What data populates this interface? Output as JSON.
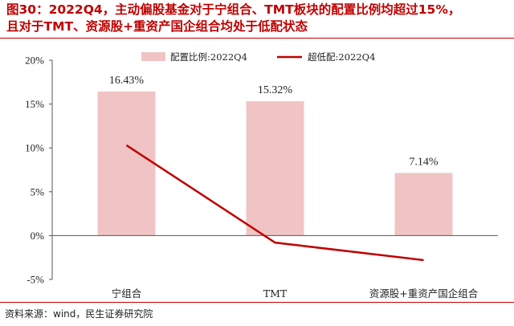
{
  "title_line1": "图30：2022Q4，主动偏股基金对于宁组合、TMT板块的配置比例均超过15%，",
  "title_line2": "且对于TMT、资源股+重资产国企组合均处于低配状态",
  "source": "资料来源：wind，民生证券研究院",
  "chart_data": {
    "type": "bar",
    "categories": [
      "宁组合",
      "TMT",
      "资源股+重资产国企组合"
    ],
    "series": [
      {
        "name": "配置比例:2022Q4",
        "type": "bar",
        "values": [
          16.43,
          15.32,
          7.14
        ],
        "labels": [
          "16.43%",
          "15.32%",
          "7.14%"
        ],
        "color": "#f0c4c4"
      },
      {
        "name": "超低配:2022Q4",
        "type": "line",
        "values": [
          10.3,
          -0.8,
          -2.8
        ],
        "color": "#c00000"
      }
    ],
    "ylim": [
      -5,
      20
    ],
    "yticks": [
      -5,
      0,
      5,
      10,
      15,
      20
    ],
    "ytick_labels": [
      "-5%",
      "0%",
      "5%",
      "10%",
      "15%",
      "20%"
    ],
    "legend_position": "top",
    "grid": false
  }
}
